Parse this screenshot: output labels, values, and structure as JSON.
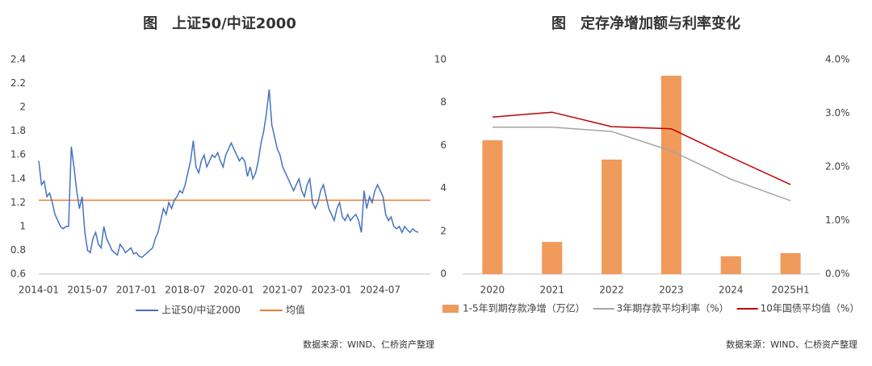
{
  "chart_data": [
    {
      "type": "line",
      "title": "图　上证50/中证2000",
      "source": "数据来源：WIND、仁桥资产整理",
      "categories": [
        "2014-01",
        null,
        null,
        null,
        null,
        null,
        null,
        null,
        null,
        null,
        null,
        null,
        null,
        null,
        null,
        null,
        null,
        null,
        "2015-07",
        null,
        null,
        null,
        null,
        null,
        null,
        null,
        null,
        null,
        null,
        null,
        null,
        null,
        null,
        null,
        null,
        null,
        "2017-01",
        null,
        null,
        null,
        null,
        null,
        null,
        null,
        null,
        null,
        null,
        null,
        null,
        null,
        null,
        null,
        null,
        null,
        "2018-07",
        null,
        null,
        null,
        null,
        null,
        null,
        null,
        null,
        null,
        null,
        null,
        null,
        null,
        null,
        null,
        null,
        null,
        "2020-01",
        null,
        null,
        null,
        null,
        null,
        null,
        null,
        null,
        null,
        null,
        null,
        null,
        null,
        null,
        null,
        null,
        null,
        "2021-07",
        null,
        null,
        null,
        null,
        null,
        null,
        null,
        null,
        null,
        null,
        null,
        null,
        null,
        null,
        null,
        null,
        null,
        "2023-01",
        null,
        null,
        null,
        null,
        null,
        null,
        null,
        null,
        null,
        null,
        null,
        null,
        null,
        null,
        null,
        null,
        null,
        "2024-07",
        null,
        null,
        null,
        null,
        null,
        null,
        null,
        null,
        null,
        null,
        null,
        null,
        null,
        null
      ],
      "series": [
        {
          "name": "上证50/中证2000",
          "color": "#4472c4",
          "values": [
            1.55,
            1.35,
            1.38,
            1.25,
            1.28,
            1.2,
            1.1,
            1.05,
            1.0,
            0.98,
            1.0,
            1.0,
            1.67,
            1.5,
            1.3,
            1.15,
            1.25,
            0.95,
            0.8,
            0.78,
            0.9,
            0.95,
            0.85,
            0.82,
            1.0,
            0.9,
            0.85,
            0.8,
            0.78,
            0.76,
            0.85,
            0.82,
            0.78,
            0.8,
            0.82,
            0.77,
            0.78,
            0.75,
            0.74,
            0.76,
            0.78,
            0.8,
            0.82,
            0.9,
            0.95,
            1.05,
            1.15,
            1.1,
            1.2,
            1.15,
            1.22,
            1.25,
            1.3,
            1.28,
            1.35,
            1.45,
            1.55,
            1.72,
            1.5,
            1.45,
            1.55,
            1.6,
            1.5,
            1.55,
            1.6,
            1.58,
            1.62,
            1.55,
            1.5,
            1.6,
            1.65,
            1.7,
            1.65,
            1.6,
            1.55,
            1.58,
            1.55,
            1.42,
            1.5,
            1.4,
            1.45,
            1.55,
            1.7,
            1.8,
            1.95,
            2.15,
            1.85,
            1.75,
            1.65,
            1.6,
            1.5,
            1.45,
            1.4,
            1.35,
            1.3,
            1.35,
            1.4,
            1.3,
            1.25,
            1.35,
            1.4,
            1.2,
            1.15,
            1.2,
            1.3,
            1.35,
            1.25,
            1.15,
            1.1,
            1.05,
            1.15,
            1.2,
            1.08,
            1.05,
            1.1,
            1.05,
            1.08,
            1.1,
            1.05,
            0.95,
            1.3,
            1.15,
            1.25,
            1.2,
            1.3,
            1.35,
            1.3,
            1.25,
            1.1,
            1.05,
            1.08,
            1.0,
            0.98,
            1.0,
            0.95,
            1.0,
            0.97,
            0.95,
            0.98,
            0.96,
            0.95
          ]
        }
      ],
      "hlines": [
        {
          "name": "均值",
          "color": "#ed7d31",
          "value": 1.22
        }
      ],
      "ylim": [
        0.6,
        2.4
      ],
      "yticks": [
        0.6,
        0.8,
        1.0,
        1.2,
        1.4,
        1.6,
        1.8,
        2.0,
        2.2,
        2.4
      ],
      "grid": false
    },
    {
      "type": "bar",
      "title": "图　定存净增加额与利率变化",
      "source": "数据来源：WIND、仁桥资产整理",
      "categories": [
        "2020",
        "2021",
        "2022",
        "2023",
        "2024",
        "2025H1"
      ],
      "series": [
        {
          "name": "1-5年到期存款净增（万亿）",
          "type": "bar",
          "color": "#f09b5b",
          "values": [
            6.24,
            1.5,
            5.34,
            9.25,
            0.83,
            0.98
          ]
        },
        {
          "name": "3年期存款平均利率（%）",
          "type": "line",
          "axis": "y2",
          "color": "#a5a5a5",
          "values": [
            2.74,
            2.74,
            2.66,
            2.3,
            1.77,
            1.37
          ]
        },
        {
          "name": "10年国债平均值（%）",
          "type": "line",
          "axis": "y2",
          "color": "#c00000",
          "values": [
            2.93,
            3.02,
            2.75,
            2.71,
            2.18,
            1.67
          ]
        }
      ],
      "ylim": [
        0,
        10
      ],
      "yticks": [
        0,
        2,
        4,
        6,
        8,
        10
      ],
      "y2lim": [
        0,
        4
      ],
      "y2ticks": [
        {
          "value": 0,
          "label": "0.0%"
        },
        {
          "value": 1,
          "label": "1.0%"
        },
        {
          "value": 2,
          "label": "2.0%"
        },
        {
          "value": 3,
          "label": "3.0%"
        },
        {
          "value": 4,
          "label": "4.0%"
        }
      ],
      "grid": false
    }
  ]
}
